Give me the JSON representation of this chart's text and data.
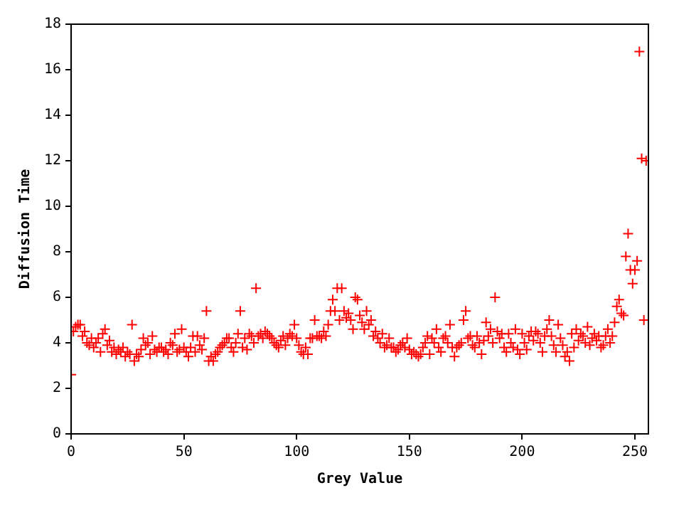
{
  "chart_data": {
    "type": "scatter",
    "xlabel": "Grey Value",
    "ylabel": "Diffusion Time",
    "marker": "cross",
    "grid": false,
    "legend": false,
    "xlim": [
      0,
      256
    ],
    "xticks": [
      0,
      50,
      100,
      150,
      200,
      250
    ],
    "ylim": [
      0,
      18
    ],
    "yticks": [
      0,
      2,
      4,
      6,
      8,
      10,
      12,
      14,
      16,
      18
    ],
    "x": [
      0,
      1,
      2,
      3,
      4,
      5,
      6,
      7,
      8,
      9,
      10,
      11,
      12,
      13,
      14,
      15,
      16,
      17,
      18,
      19,
      20,
      21,
      22,
      23,
      24,
      25,
      26,
      27,
      28,
      29,
      30,
      31,
      32,
      33,
      34,
      35,
      36,
      37,
      38,
      39,
      40,
      41,
      42,
      43,
      44,
      45,
      46,
      47,
      48,
      49,
      50,
      51,
      52,
      53,
      54,
      55,
      56,
      57,
      58,
      59,
      60,
      61,
      62,
      63,
      64,
      65,
      66,
      67,
      68,
      69,
      70,
      71,
      72,
      73,
      74,
      75,
      76,
      77,
      78,
      79,
      80,
      81,
      82,
      83,
      84,
      85,
      86,
      87,
      88,
      89,
      90,
      91,
      92,
      93,
      94,
      95,
      96,
      97,
      98,
      99,
      100,
      101,
      102,
      103,
      104,
      105,
      106,
      107,
      108,
      109,
      110,
      111,
      112,
      113,
      114,
      115,
      116,
      117,
      118,
      119,
      120,
      121,
      122,
      123,
      124,
      125,
      126,
      127,
      128,
      129,
      130,
      131,
      132,
      133,
      134,
      135,
      136,
      137,
      138,
      139,
      140,
      141,
      142,
      143,
      144,
      145,
      146,
      147,
      148,
      149,
      150,
      151,
      152,
      153,
      154,
      155,
      156,
      157,
      158,
      159,
      160,
      161,
      162,
      163,
      164,
      165,
      166,
      167,
      168,
      169,
      170,
      171,
      172,
      173,
      174,
      175,
      176,
      177,
      178,
      179,
      180,
      181,
      182,
      183,
      184,
      185,
      186,
      187,
      188,
      189,
      190,
      191,
      192,
      193,
      194,
      195,
      196,
      197,
      198,
      199,
      200,
      201,
      202,
      203,
      204,
      205,
      206,
      207,
      208,
      209,
      210,
      211,
      212,
      213,
      214,
      215,
      216,
      217,
      218,
      219,
      220,
      221,
      222,
      223,
      224,
      225,
      226,
      227,
      228,
      229,
      230,
      231,
      232,
      233,
      234,
      235,
      236,
      237,
      238,
      239,
      240,
      241,
      242,
      243,
      244,
      245,
      246,
      247,
      248,
      249,
      250,
      251,
      252,
      253,
      254,
      255
    ],
    "series": [
      {
        "color": "#ff0000",
        "values": [
          2.6,
          4.5,
          4.7,
          4.8,
          4.8,
          4.3,
          4.5,
          4.0,
          3.9,
          4.2,
          3.8,
          4.0,
          4.2,
          3.6,
          4.4,
          4.6,
          3.9,
          4.1,
          3.6,
          3.8,
          3.5,
          3.7,
          3.6,
          3.8,
          3.4,
          3.6,
          3.5,
          4.8,
          3.2,
          3.5,
          3.4,
          3.7,
          4.2,
          3.9,
          4.0,
          3.5,
          4.3,
          3.7,
          3.6,
          3.8,
          3.8,
          3.6,
          3.7,
          3.5,
          4.0,
          3.9,
          4.4,
          3.6,
          3.7,
          4.6,
          3.8,
          3.6,
          3.4,
          3.8,
          4.3,
          3.6,
          4.3,
          3.9,
          3.7,
          4.2,
          5.4,
          3.2,
          3.4,
          3.2,
          3.5,
          3.6,
          3.8,
          3.9,
          4.0,
          4.2,
          4.2,
          3.8,
          3.6,
          4.0,
          4.4,
          5.4,
          3.8,
          4.2,
          3.7,
          4.4,
          4.3,
          4.0,
          6.4,
          4.3,
          4.4,
          4.2,
          4.5,
          4.4,
          4.3,
          4.2,
          4.0,
          3.9,
          3.8,
          4.1,
          4.3,
          3.9,
          4.2,
          4.4,
          4.3,
          4.8,
          4.2,
          3.9,
          3.6,
          3.5,
          3.8,
          3.5,
          4.2,
          4.2,
          5.0,
          4.3,
          4.3,
          4.2,
          4.5,
          4.3,
          4.8,
          5.4,
          5.9,
          5.4,
          6.4,
          5.0,
          6.4,
          5.4,
          5.1,
          5.3,
          5.0,
          4.6,
          6.0,
          5.9,
          5.2,
          4.9,
          4.6,
          5.4,
          4.8,
          5.0,
          4.3,
          4.5,
          4.2,
          4.0,
          4.4,
          3.8,
          3.9,
          4.2,
          3.8,
          3.8,
          3.6,
          3.7,
          3.9,
          4.0,
          3.8,
          4.2,
          3.7,
          3.5,
          3.6,
          3.5,
          3.4,
          3.5,
          3.8,
          4.0,
          4.3,
          3.5,
          4.2,
          4.0,
          4.6,
          3.8,
          3.6,
          4.2,
          4.3,
          4.0,
          4.8,
          3.8,
          3.4,
          3.8,
          3.9,
          4.0,
          5.0,
          5.4,
          4.2,
          4.3,
          3.9,
          3.8,
          4.3,
          4.0,
          3.5,
          4.1,
          4.9,
          4.3,
          4.6,
          4.0,
          6.0,
          4.5,
          4.2,
          4.4,
          3.8,
          3.6,
          4.4,
          4.0,
          3.8,
          4.6,
          3.7,
          3.5,
          4.4,
          4.0,
          3.7,
          4.3,
          4.5,
          4.1,
          4.5,
          4.4,
          4.0,
          3.6,
          4.3,
          4.6,
          5.0,
          4.3,
          3.9,
          3.6,
          4.8,
          4.2,
          3.9,
          3.4,
          3.6,
          3.2,
          4.4,
          3.8,
          4.6,
          4.1,
          4.4,
          4.3,
          4.0,
          4.7,
          3.9,
          4.2,
          4.4,
          4.1,
          4.3,
          3.8,
          3.9,
          4.3,
          4.6,
          4.0,
          4.3,
          4.9,
          5.6,
          5.9,
          5.3,
          5.2,
          7.8,
          8.8,
          7.2,
          6.6,
          7.2,
          7.6,
          16.8,
          12.1,
          5.0,
          12.0
        ]
      }
    ]
  }
}
